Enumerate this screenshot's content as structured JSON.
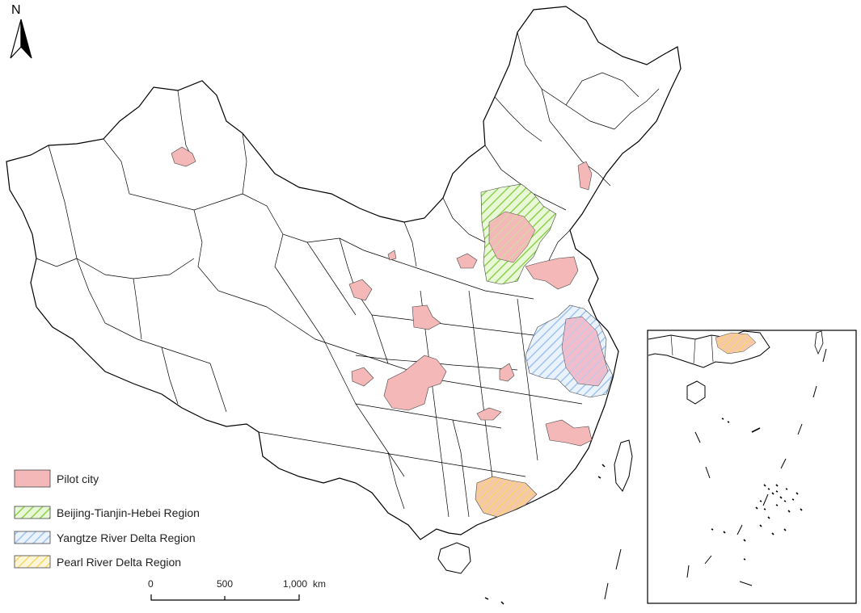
{
  "north_arrow": {
    "label": "N"
  },
  "legend": {
    "items": [
      {
        "label": "Pilot city",
        "fill": "#f4b8b8",
        "pattern": "solid"
      },
      {
        "label": "Beijing-Tianjin-Hebei Region",
        "fill": "#8fd14f",
        "pattern": "hatch"
      },
      {
        "label": "Yangtze River Delta Region",
        "fill": "#9ec3f0",
        "pattern": "hatch"
      },
      {
        "label": "Pearl River Delta Region",
        "fill": "#f5d76e",
        "pattern": "hatch"
      }
    ]
  },
  "scale_bar": {
    "ticks": [
      "0",
      "500",
      "1,000"
    ],
    "unit": "km"
  },
  "colors": {
    "boundary": "#000000",
    "pilot_city": "#f4b8b8",
    "beijing_tianjin_hebei": "#8fd14f",
    "yangtze_river_delta": "#9ec3f0",
    "pearl_river_delta": "#f5d76e"
  }
}
